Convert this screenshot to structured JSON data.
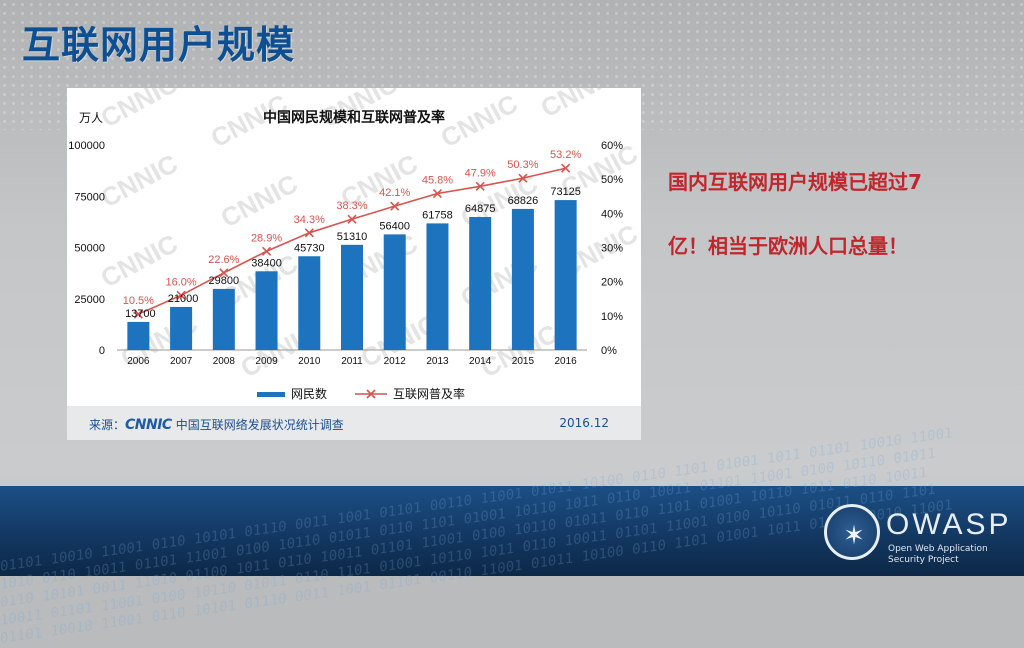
{
  "slide": {
    "title": "互联网用户规模",
    "callout_line1": "国内互联网用户规模已超过7",
    "callout_line2": "亿！相当于欧洲人口总量！"
  },
  "source": {
    "prefix": "来源：",
    "logo_text": "CNNIC",
    "name": "中国互联网络发展状况统计调查",
    "date": "2016.12"
  },
  "brand": {
    "word": "OWASP",
    "subtitle_line1": "Open Web Application",
    "subtitle_line2": "Security Project"
  },
  "colors": {
    "bar": "#1e73be",
    "line": "#d9534f",
    "title": "#0d4f93",
    "callout": "#c0272d"
  },
  "chart_data": {
    "type": "bar",
    "title": "中国网民规模和互联网普及率",
    "y_left_unit": "万人",
    "categories": [
      "2006",
      "2007",
      "2008",
      "2009",
      "2010",
      "2011",
      "2012",
      "2013",
      "2014",
      "2015",
      "2016"
    ],
    "series": [
      {
        "name": "网民数",
        "type": "bar",
        "axis": "left",
        "values": [
          13700,
          21000,
          29800,
          38400,
          45730,
          51310,
          56400,
          61758,
          64875,
          68826,
          73125
        ],
        "labels": [
          "13700",
          "21000",
          "29800",
          "38400",
          "45730",
          "51310",
          "56400",
          "61758",
          "64875",
          "68826",
          "73125"
        ]
      },
      {
        "name": "互联网普及率",
        "type": "line",
        "axis": "right",
        "values": [
          10.5,
          16.0,
          22.6,
          28.9,
          34.3,
          38.3,
          42.1,
          45.8,
          47.9,
          50.3,
          53.2
        ],
        "labels": [
          "10.5%",
          "16.0%",
          "22.6%",
          "28.9%",
          "34.3%",
          "38.3%",
          "42.1%",
          "45.8%",
          "47.9%",
          "50.3%",
          "53.2%"
        ]
      }
    ],
    "y_left": {
      "range": [
        0,
        100000
      ],
      "ticks": [
        "0",
        "25000",
        "50000",
        "75000",
        "100000"
      ],
      "tick_values": [
        0,
        25000,
        50000,
        75000,
        100000
      ]
    },
    "y_right": {
      "range": [
        0,
        60
      ],
      "ticks": [
        "0%",
        "10%",
        "20%",
        "30%",
        "40%",
        "50%",
        "60%"
      ],
      "tick_values": [
        0,
        10,
        20,
        30,
        40,
        50,
        60
      ]
    },
    "grid": false,
    "legend_position": "bottom",
    "watermark": "CNNIC"
  }
}
